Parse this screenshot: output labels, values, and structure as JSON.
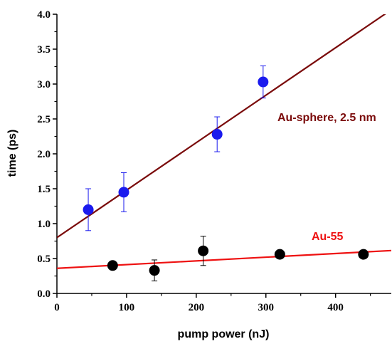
{
  "chart_data": {
    "type": "scatter",
    "xlabel": "pump power (nJ)",
    "ylabel": "time (ps)",
    "xlim": [
      0,
      480
    ],
    "ylim": [
      0,
      4.0
    ],
    "x_ticks": [
      0,
      100,
      200,
      300,
      400
    ],
    "x_tick_labels": [
      "0",
      "100",
      "200",
      "300",
      "400"
    ],
    "y_ticks": [
      0.0,
      0.5,
      1.0,
      1.5,
      2.0,
      2.5,
      3.0,
      3.5,
      4.0
    ],
    "y_tick_labels": [
      "0.0",
      "0.5",
      "1.0",
      "1.5",
      "2.0",
      "2.5",
      "3.0",
      "3.5",
      "4.0"
    ],
    "grid": false,
    "series": [
      {
        "name": "Au-sphere, 2.5 nm",
        "marker_color": "#1a1aee",
        "errorbar_color": "#1a1aee",
        "points": [
          {
            "x": 45,
            "y": 1.2,
            "err": 0.3
          },
          {
            "x": 96,
            "y": 1.45,
            "err": 0.28
          },
          {
            "x": 230,
            "y": 2.28,
            "err": 0.25
          },
          {
            "x": 296,
            "y": 3.03,
            "err": 0.23
          }
        ],
        "fit": {
          "color": "#7a0a0a",
          "intercept": 0.8,
          "slope": 0.0068
        }
      },
      {
        "name": "Au-55",
        "marker_color": "#000000",
        "errorbar_color": "#000000",
        "points": [
          {
            "x": 80,
            "y": 0.4,
            "err": 0.0
          },
          {
            "x": 140,
            "y": 0.33,
            "err": 0.15
          },
          {
            "x": 210,
            "y": 0.61,
            "err": 0.21
          },
          {
            "x": 320,
            "y": 0.56,
            "err": 0.0
          },
          {
            "x": 440,
            "y": 0.56,
            "err": 0.0
          }
        ],
        "fit": {
          "color": "#ee1111",
          "intercept": 0.36,
          "slope": 0.00053
        }
      }
    ],
    "annotations": [
      {
        "text": "Au-sphere, 2.5 nm",
        "color": "#7a0a0a"
      },
      {
        "text": "Au-55",
        "color": "#ee1111"
      }
    ]
  }
}
